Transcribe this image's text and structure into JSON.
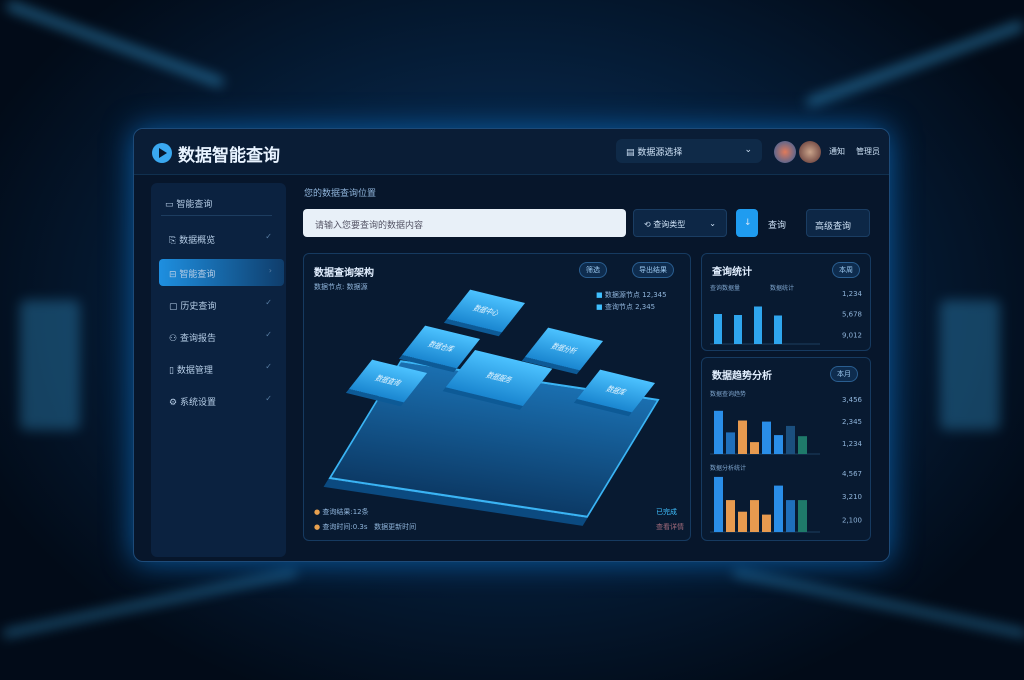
{
  "header": {
    "title": "数据智能查询",
    "selector": "数据源选择",
    "user": "管理员",
    "bell": "通知"
  },
  "sidebar": {
    "items": [
      {
        "label": "智能查询"
      },
      {
        "label": "数据概览"
      },
      {
        "label": "智能查询"
      },
      {
        "label": "历史查询"
      },
      {
        "label": "查询报告"
      },
      {
        "label": "数据管理"
      },
      {
        "label": "系统设置"
      }
    ],
    "active": 2
  },
  "breadcrumb": "您的数据查询位置",
  "search": {
    "placeholder": "请输入您要查询的数据内容"
  },
  "toolbar": {
    "dropdown": "查询类型",
    "submit_label": "查询",
    "advanced_label": "高级查询"
  },
  "center": {
    "title": "数据查询架构",
    "subtitle": "数据节点: 数据源",
    "filter": "筛选",
    "export": "导出结果",
    "legend": [
      {
        "label": "数据源节点",
        "value": "12,345"
      },
      {
        "label": "查询节点",
        "value": "2,345"
      }
    ],
    "tiles": [
      "数据中心",
      "数据仓库",
      "数据分析",
      "数据查询",
      "数据服务",
      "数据库"
    ],
    "footer": [
      {
        "label": "查询结果:12条"
      },
      {
        "label": "查询时间:0.3s",
        "extra": "数据更新时间"
      }
    ],
    "status": "已完成",
    "status2": "查看详情"
  },
  "charts": [
    {
      "title": "查询统计",
      "badge": "本周",
      "type": "bar",
      "values": [
        60,
        58,
        75,
        57
      ],
      "colors": [
        "#2fa6ee",
        "#2fa6ee",
        "#2fa6ee",
        "#2fa6ee"
      ],
      "labels": [
        "查询数据量",
        "数据统计"
      ],
      "side": [
        "1,234",
        "5,678",
        "9,012"
      ]
    },
    {
      "title": "数据趋势分析",
      "badge": "本月",
      "type": "bar",
      "values": [
        80,
        40,
        62,
        22,
        60,
        35,
        52,
        33
      ],
      "colors": [
        "#2a8ee8",
        "#1f6fbb",
        "#e79a4f",
        "#e79a4f",
        "#2a8ee8",
        "#2a8ee8",
        "#1b4f7e",
        "#1f7a6a"
      ],
      "labels": [
        "数据查询趋势"
      ],
      "side": [
        "3,456",
        "2,345",
        "1,234"
      ]
    },
    {
      "title": "",
      "badge": "",
      "type": "bar",
      "values": [
        95,
        55,
        35,
        55,
        30,
        80,
        55,
        55
      ],
      "colors": [
        "#2a8ee8",
        "#e79a4f",
        "#e79a4f",
        "#e79a4f",
        "#e79a4f",
        "#2a8ee8",
        "#1f6fbb",
        "#1f7a6a"
      ],
      "labels": [
        "数据分析统计"
      ],
      "side": [
        "4,567",
        "3,210",
        "2,100"
      ]
    }
  ]
}
